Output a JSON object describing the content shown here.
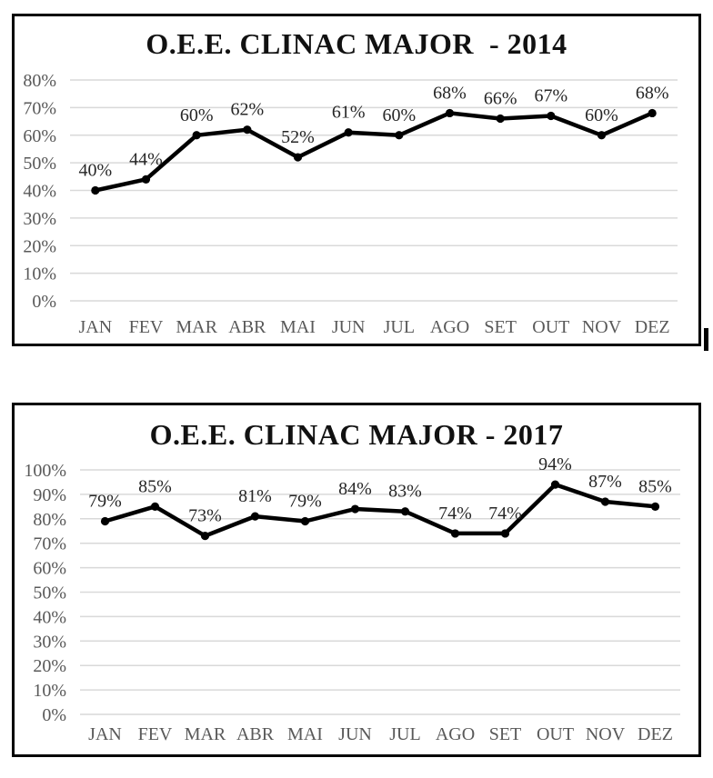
{
  "colors": {
    "line": "#000000",
    "marker": "#000000",
    "grid": "#d9d9d9",
    "axis_text": "#595959",
    "data_label": "#262626",
    "panel_border": "#000000",
    "title_text": "#111111"
  },
  "chart_data": [
    {
      "type": "line",
      "title": "O.E.E. CLINAC MAJOR  - 2014",
      "categories": [
        "JAN",
        "FEV",
        "MAR",
        "ABR",
        "MAI",
        "JUN",
        "JUL",
        "AGO",
        "SET",
        "OUT",
        "NOV",
        "DEZ"
      ],
      "values": [
        40,
        44,
        60,
        62,
        52,
        61,
        60,
        68,
        66,
        67,
        60,
        68
      ],
      "data_labels": [
        "40%",
        "44%",
        "60%",
        "62%",
        "52%",
        "61%",
        "60%",
        "68%",
        "66%",
        "67%",
        "60%",
        "68%"
      ],
      "ytick_labels": [
        "0%",
        "10%",
        "20%",
        "30%",
        "40%",
        "50%",
        "60%",
        "70%",
        "80%"
      ],
      "ylim": [
        0,
        80
      ],
      "ytick_step": 10,
      "xlabel": "",
      "ylabel": "",
      "grid": "horizontal",
      "legend": "none",
      "marker": "filled-circle"
    },
    {
      "type": "line",
      "title": "O.E.E. CLINAC MAJOR - 2017",
      "categories": [
        "JAN",
        "FEV",
        "MAR",
        "ABR",
        "MAI",
        "JUN",
        "JUL",
        "AGO",
        "SET",
        "OUT",
        "NOV",
        "DEZ"
      ],
      "values": [
        79,
        85,
        73,
        81,
        79,
        84,
        83,
        74,
        74,
        94,
        87,
        85
      ],
      "data_labels": [
        "79%",
        "85%",
        "73%",
        "81%",
        "79%",
        "84%",
        "83%",
        "74%",
        "74%",
        "94%",
        "87%",
        "85%"
      ],
      "ytick_labels": [
        "0%",
        "10%",
        "20%",
        "30%",
        "40%",
        "50%",
        "60%",
        "70%",
        "80%",
        "90%",
        "100%"
      ],
      "ylim": [
        0,
        100
      ],
      "ytick_step": 10,
      "xlabel": "",
      "ylabel": "",
      "grid": "horizontal",
      "legend": "none",
      "marker": "filled-circle"
    }
  ]
}
